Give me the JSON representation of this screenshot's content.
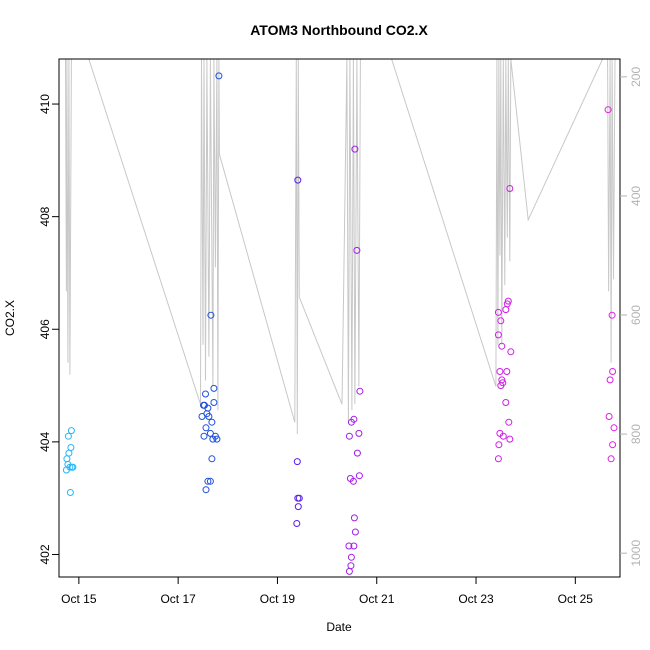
{
  "chart_data": {
    "type": "scatter",
    "title": "ATOM3 Northbound CO2.X",
    "xlabel": "Date",
    "ylabel": "CO2.X",
    "x_unit": "days (October, fractional day-of-month)",
    "xlim": [
      14.6,
      25.9
    ],
    "ylim": [
      401.6,
      410.8
    ],
    "right_axis": {
      "label": "",
      "lim": [
        1040,
        170
      ],
      "ticks": [
        "200",
        "400",
        "600",
        "800",
        "1000"
      ],
      "color": "#b3b3b3",
      "inverted": true
    },
    "x_ticks": [
      "Oct 15",
      "Oct 17",
      "Oct 19",
      "Oct 21",
      "Oct 23",
      "Oct 25"
    ],
    "y_ticks": [
      "402",
      "404",
      "406",
      "408",
      "410"
    ],
    "grid": false,
    "point_color_scale": [
      "#29b6f6",
      "#1e4fe0",
      "#5a1ee6",
      "#a21ee6",
      "#d01ee6",
      "#e01ee6"
    ],
    "points": [
      {
        "x": 14.75,
        "y": 403.5
      },
      {
        "x": 14.78,
        "y": 403.6
      },
      {
        "x": 14.8,
        "y": 403.8
      },
      {
        "x": 14.76,
        "y": 403.7
      },
      {
        "x": 14.79,
        "y": 404.1
      },
      {
        "x": 14.85,
        "y": 404.2
      },
      {
        "x": 14.84,
        "y": 403.9
      },
      {
        "x": 14.82,
        "y": 403.55
      },
      {
        "x": 14.86,
        "y": 403.55
      },
      {
        "x": 14.88,
        "y": 403.55
      },
      {
        "x": 14.83,
        "y": 403.1
      },
      {
        "x": 17.48,
        "y": 404.45
      },
      {
        "x": 17.51,
        "y": 404.65
      },
      {
        "x": 17.53,
        "y": 404.65
      },
      {
        "x": 17.55,
        "y": 404.85
      },
      {
        "x": 17.56,
        "y": 404.25
      },
      {
        "x": 17.58,
        "y": 404.5
      },
      {
        "x": 17.6,
        "y": 404.6
      },
      {
        "x": 17.62,
        "y": 404.45
      },
      {
        "x": 17.52,
        "y": 404.1
      },
      {
        "x": 17.65,
        "y": 404.15
      },
      {
        "x": 17.7,
        "y": 404.05
      },
      {
        "x": 17.75,
        "y": 404.1
      },
      {
        "x": 17.78,
        "y": 404.05
      },
      {
        "x": 17.68,
        "y": 404.35
      },
      {
        "x": 17.72,
        "y": 404.7
      },
      {
        "x": 17.66,
        "y": 406.25
      },
      {
        "x": 17.72,
        "y": 404.95
      },
      {
        "x": 17.6,
        "y": 403.3
      },
      {
        "x": 17.65,
        "y": 403.3
      },
      {
        "x": 17.56,
        "y": 403.15
      },
      {
        "x": 17.68,
        "y": 403.7
      },
      {
        "x": 17.82,
        "y": 410.5
      },
      {
        "x": 19.41,
        "y": 408.65
      },
      {
        "x": 19.4,
        "y": 403.65
      },
      {
        "x": 19.41,
        "y": 403.0
      },
      {
        "x": 19.44,
        "y": 403.0
      },
      {
        "x": 19.42,
        "y": 402.85
      },
      {
        "x": 19.39,
        "y": 402.55
      },
      {
        "x": 20.56,
        "y": 409.2
      },
      {
        "x": 20.6,
        "y": 407.4
      },
      {
        "x": 20.66,
        "y": 404.9
      },
      {
        "x": 20.49,
        "y": 404.35
      },
      {
        "x": 20.54,
        "y": 404.4
      },
      {
        "x": 20.45,
        "y": 404.1
      },
      {
        "x": 20.64,
        "y": 404.15
      },
      {
        "x": 20.61,
        "y": 403.8
      },
      {
        "x": 20.65,
        "y": 403.4
      },
      {
        "x": 20.47,
        "y": 403.35
      },
      {
        "x": 20.53,
        "y": 403.3
      },
      {
        "x": 20.55,
        "y": 402.65
      },
      {
        "x": 20.57,
        "y": 402.4
      },
      {
        "x": 20.44,
        "y": 402.15
      },
      {
        "x": 20.54,
        "y": 402.15
      },
      {
        "x": 20.49,
        "y": 401.95
      },
      {
        "x": 20.48,
        "y": 401.8
      },
      {
        "x": 20.45,
        "y": 401.7
      },
      {
        "x": 23.45,
        "y": 406.3
      },
      {
        "x": 23.5,
        "y": 406.15
      },
      {
        "x": 23.45,
        "y": 405.9
      },
      {
        "x": 23.52,
        "y": 405.7
      },
      {
        "x": 23.48,
        "y": 405.25
      },
      {
        "x": 23.52,
        "y": 405.1
      },
      {
        "x": 23.5,
        "y": 405.0
      },
      {
        "x": 23.54,
        "y": 405.05
      },
      {
        "x": 23.6,
        "y": 406.35
      },
      {
        "x": 23.63,
        "y": 406.45
      },
      {
        "x": 23.65,
        "y": 406.5
      },
      {
        "x": 23.7,
        "y": 405.6
      },
      {
        "x": 23.62,
        "y": 405.25
      },
      {
        "x": 23.6,
        "y": 404.7
      },
      {
        "x": 23.66,
        "y": 404.35
      },
      {
        "x": 23.48,
        "y": 404.15
      },
      {
        "x": 23.55,
        "y": 404.1
      },
      {
        "x": 23.68,
        "y": 404.05
      },
      {
        "x": 23.46,
        "y": 403.95
      },
      {
        "x": 23.45,
        "y": 403.7
      },
      {
        "x": 23.68,
        "y": 408.5
      },
      {
        "x": 25.66,
        "y": 409.9
      },
      {
        "x": 25.74,
        "y": 406.25
      },
      {
        "x": 25.75,
        "y": 405.25
      },
      {
        "x": 25.7,
        "y": 405.1
      },
      {
        "x": 25.68,
        "y": 404.45
      },
      {
        "x": 25.78,
        "y": 404.25
      },
      {
        "x": 25.75,
        "y": 403.95
      },
      {
        "x": 25.72,
        "y": 403.7
      }
    ],
    "secondary_line": {
      "description": "",
      "x": [
        14.73,
        14.75,
        14.76,
        14.78,
        14.8,
        14.82,
        14.85,
        14.87,
        15.2,
        17.45,
        17.47,
        17.5,
        17.52,
        17.55,
        17.58,
        17.62,
        17.65,
        17.7,
        17.72,
        17.75,
        17.78,
        17.8,
        17.82,
        17.83,
        19.35,
        19.38,
        19.4,
        19.42,
        19.44,
        20.3,
        20.4,
        20.43,
        20.46,
        20.5,
        20.53,
        20.56,
        20.6,
        20.64,
        20.67,
        21.3,
        23.4,
        23.42,
        23.44,
        23.46,
        23.48,
        23.5,
        23.52,
        23.55,
        23.58,
        23.6,
        23.63,
        23.65,
        23.68,
        23.7,
        24.05,
        25.55,
        25.65,
        25.67,
        25.7,
        25.72,
        25.74,
        25.77,
        25.8
      ],
      "y": [
        170,
        560,
        170,
        680,
        170,
        700,
        170,
        170,
        170,
        750,
        170,
        650,
        170,
        710,
        170,
        670,
        170,
        720,
        170,
        520,
        170,
        760,
        170,
        330,
        780,
        170,
        800,
        170,
        570,
        750,
        170,
        780,
        170,
        760,
        170,
        750,
        170,
        720,
        170,
        170,
        720,
        170,
        650,
        170,
        500,
        170,
        650,
        170,
        550,
        170,
        470,
        170,
        510,
        170,
        440,
        170,
        170,
        560,
        170,
        680,
        170,
        540,
        170
      ]
    }
  }
}
